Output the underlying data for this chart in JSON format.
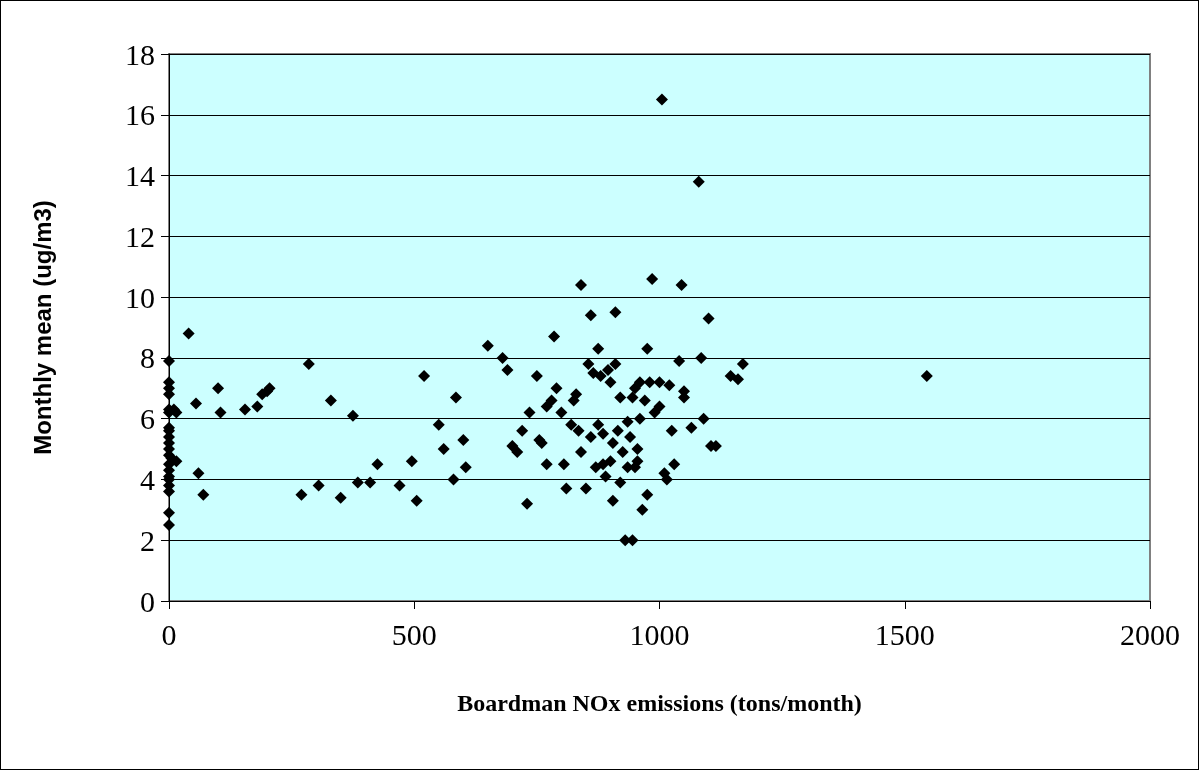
{
  "chart_data": {
    "type": "scatter",
    "xlabel": "Boardman NOx emissions (tons/month)",
    "ylabel": "Monthly mean (ug/m3)",
    "xlim": [
      0,
      2000
    ],
    "xticks": [
      0,
      500,
      1000,
      1500,
      2000
    ],
    "ylim": [
      0,
      18
    ],
    "yticks": [
      0,
      2,
      4,
      6,
      8,
      10,
      12,
      14,
      16,
      18
    ],
    "grid": "y",
    "marker": "diamond",
    "series": [
      {
        "color": "#000000",
        "x": [
          0,
          0,
          0,
          0,
          0,
          0,
          0,
          0,
          0,
          0,
          0,
          0,
          0,
          0,
          0,
          0,
          0,
          0,
          0,
          0,
          10,
          15,
          5,
          15,
          40,
          55,
          60,
          70,
          100,
          105,
          155,
          180,
          190,
          200,
          205,
          270,
          285,
          305,
          330,
          350,
          375,
          385,
          410,
          425,
          470,
          495,
          505,
          520,
          550,
          560,
          580,
          585,
          600,
          605,
          650,
          680,
          690,
          700,
          710,
          720,
          730,
          735,
          750,
          755,
          760,
          770,
          770,
          780,
          785,
          790,
          800,
          805,
          810,
          820,
          825,
          830,
          835,
          840,
          840,
          850,
          855,
          860,
          860,
          865,
          870,
          875,
          875,
          880,
          885,
          885,
          890,
          895,
          900,
          900,
          905,
          910,
          905,
          910,
          915,
          920,
          920,
          925,
          930,
          935,
          935,
          940,
          945,
          950,
          950,
          955,
          955,
          960,
          960,
          965,
          970,
          975,
          975,
          980,
          985,
          990,
          1000,
          1000,
          1005,
          1010,
          1015,
          1020,
          1025,
          1030,
          1040,
          1045,
          1050,
          1050,
          1065,
          1080,
          1085,
          1090,
          1100,
          1105,
          1115,
          1145,
          1160,
          1170,
          1545,
          945
        ],
        "values": [
          7.9,
          7.2,
          7.0,
          6.8,
          6.3,
          6.2,
          5.7,
          5.6,
          5.4,
          5.2,
          5.0,
          4.8,
          4.5,
          4.3,
          4.1,
          4.0,
          3.8,
          3.6,
          2.9,
          2.5,
          6.3,
          6.2,
          4.7,
          4.6,
          8.8,
          6.5,
          4.2,
          3.5,
          7.0,
          6.2,
          6.3,
          6.4,
          6.8,
          6.9,
          7.0,
          3.5,
          7.8,
          3.8,
          6.6,
          3.4,
          6.1,
          3.9,
          3.9,
          4.5,
          3.8,
          4.6,
          3.3,
          7.4,
          5.8,
          5.0,
          4.0,
          6.7,
          5.3,
          4.4,
          8.4,
          8.0,
          7.6,
          5.1,
          4.9,
          5.6,
          3.2,
          6.2,
          7.4,
          5.3,
          5.2,
          4.5,
          6.4,
          6.6,
          8.7,
          7.0,
          6.2,
          4.5,
          3.7,
          5.8,
          6.6,
          6.8,
          5.6,
          10.4,
          4.9,
          3.7,
          7.8,
          9.4,
          5.4,
          7.5,
          4.4,
          8.3,
          5.8,
          7.4,
          5.5,
          4.5,
          4.1,
          7.6,
          4.6,
          7.2,
          5.2,
          7.8,
          3.3,
          9.5,
          5.6,
          6.7,
          3.9,
          4.9,
          2.0,
          5.9,
          4.4,
          5.4,
          6.7,
          7.0,
          4.4,
          5.0,
          4.6,
          6.0,
          7.2,
          3.0,
          6.6,
          3.5,
          8.3,
          7.2,
          10.6,
          6.2,
          7.2,
          6.4,
          16.5,
          4.2,
          4.0,
          7.1,
          5.6,
          4.5,
          7.9,
          10.4,
          6.9,
          6.7,
          5.7,
          13.8,
          8.0,
          6.0,
          9.3,
          5.1,
          5.1,
          7.4,
          7.3,
          7.8,
          7.4,
          2.0
        ]
      }
    ]
  }
}
